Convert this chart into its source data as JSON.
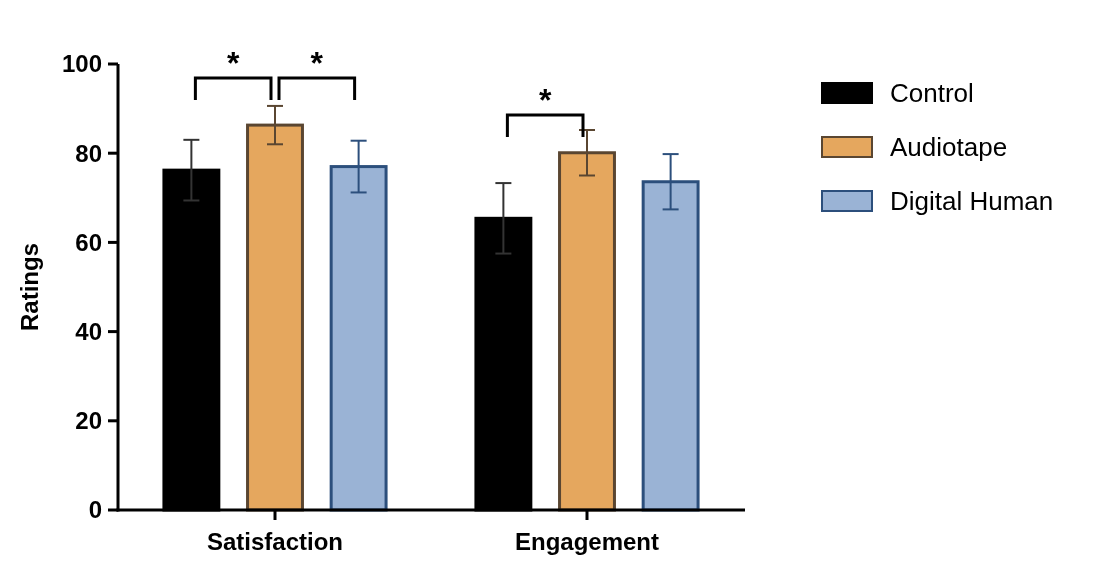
{
  "chart_data": {
    "type": "bar",
    "ylabel": "Ratings",
    "categories": [
      "Satisfaction",
      "Engagement"
    ],
    "series": [
      {
        "name": "Control",
        "color": "#000000",
        "values": [
          76.2,
          65.4
        ],
        "errors": [
          6.8,
          7.9
        ]
      },
      {
        "name": "Audiotape",
        "color": "#e5a75e",
        "values": [
          86.3,
          80.1
        ],
        "errors": [
          4.3,
          5.1
        ]
      },
      {
        "name": "Digital Human",
        "color": "#9ab3d5",
        "values": [
          77.0,
          73.6
        ],
        "errors": [
          5.8,
          6.2
        ]
      }
    ],
    "ylim": [
      0,
      100
    ],
    "yticks": [
      0,
      20,
      40,
      60,
      80,
      100
    ],
    "legend": "right",
    "grid": false,
    "annotations": [
      "*",
      "*",
      "*"
    ]
  }
}
